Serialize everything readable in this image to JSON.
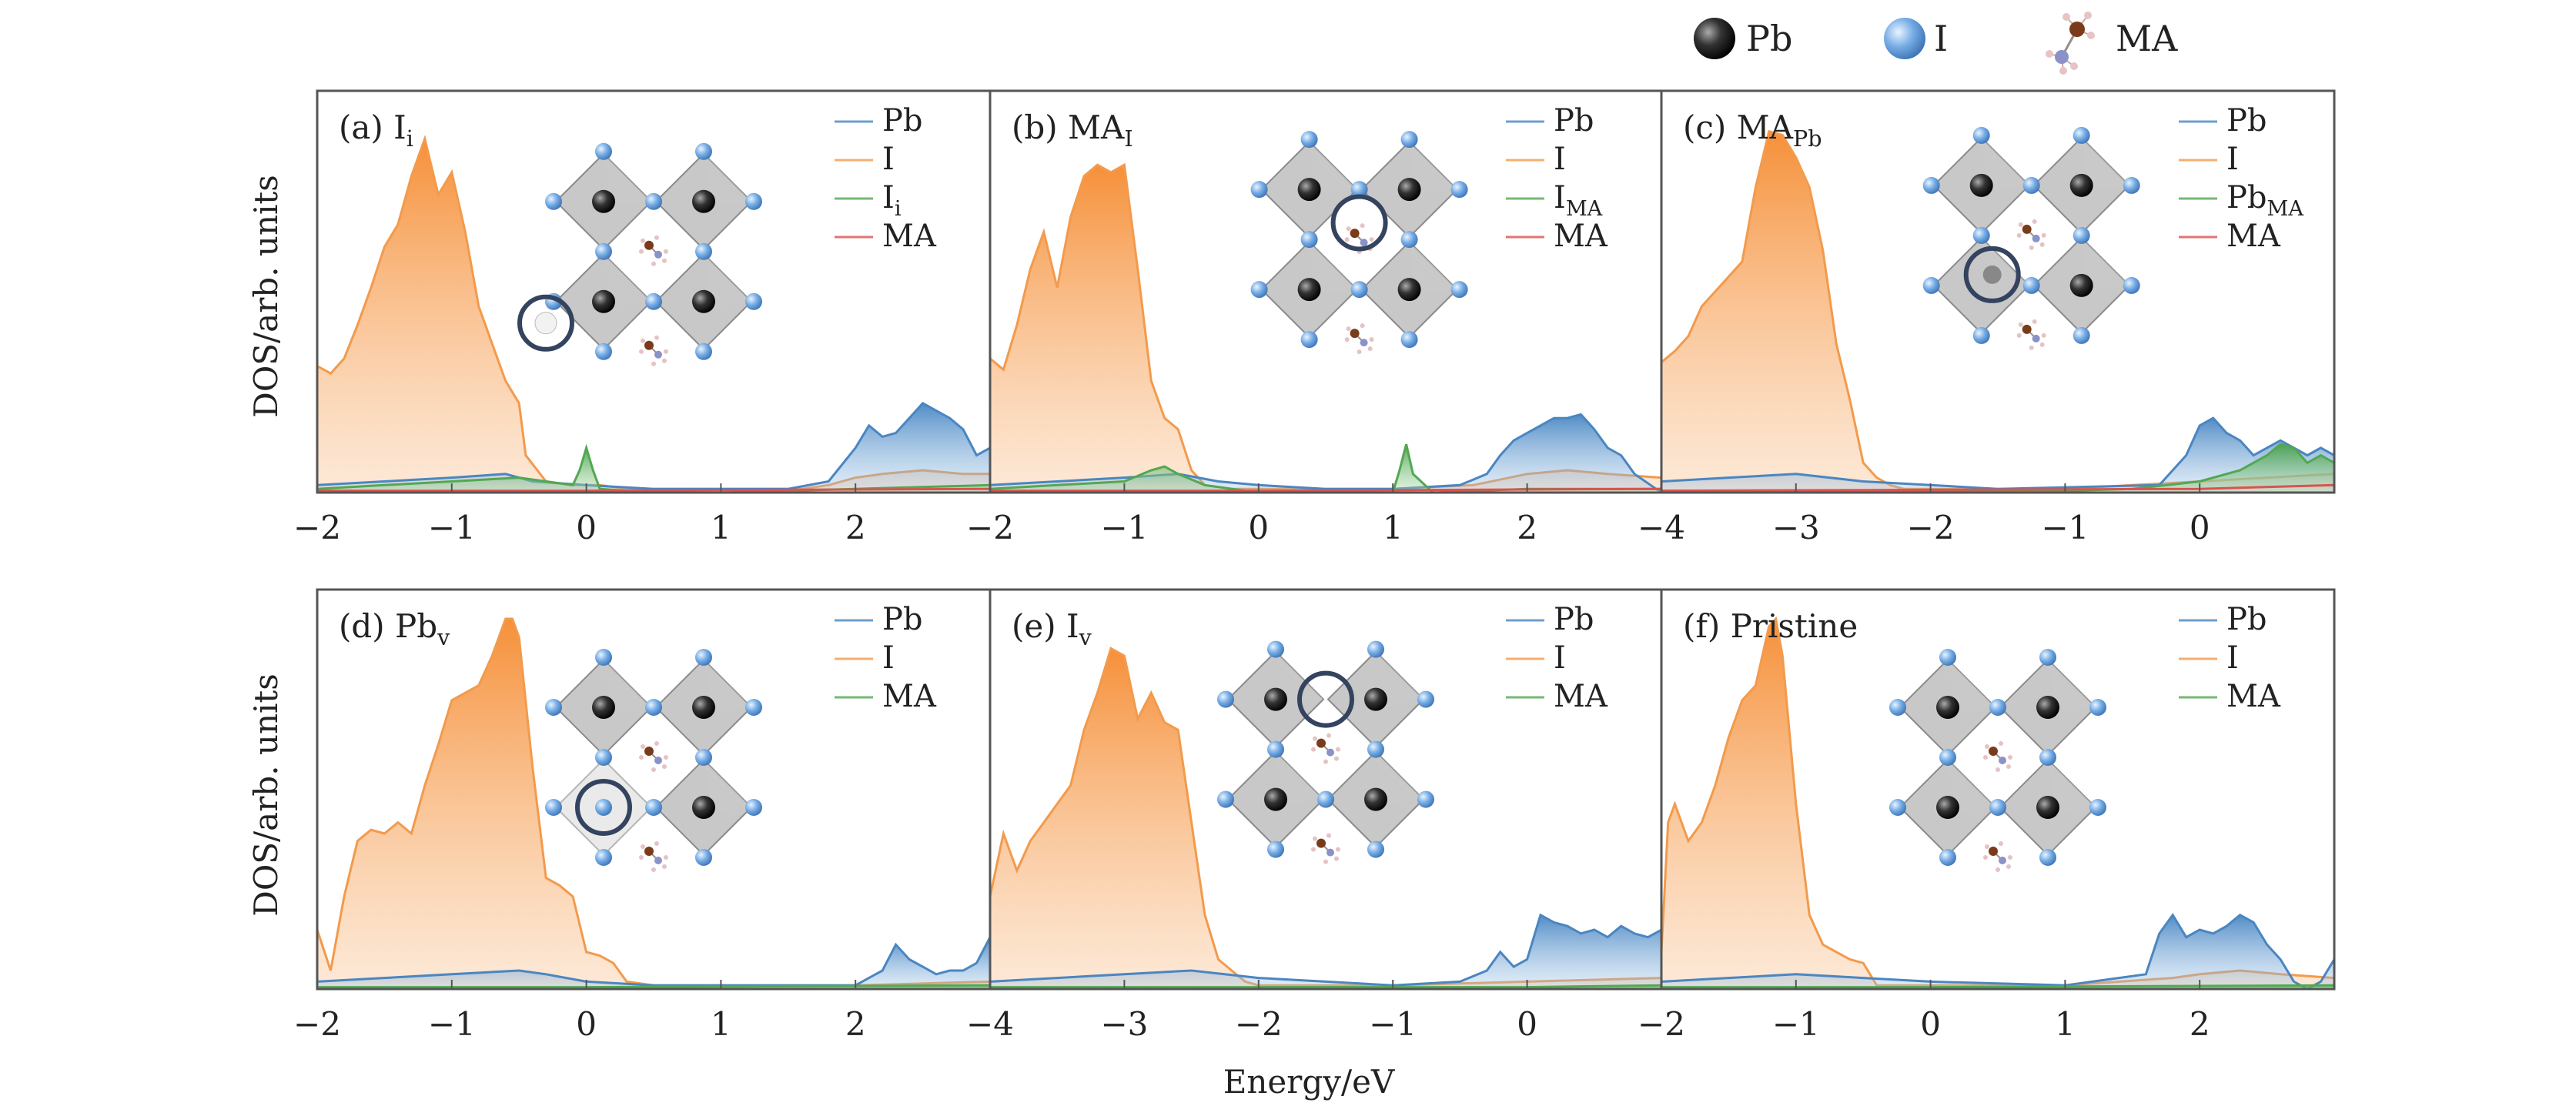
{
  "figure": {
    "ylabel": "DOS/arb. units",
    "xlabel": "Energy/eV",
    "atom_legend": [
      {
        "label": "Pb",
        "icon": "pb-atom-icon",
        "color": "#222222"
      },
      {
        "label": "I",
        "icon": "i-atom-icon",
        "color": "#6fa6e0"
      },
      {
        "label": "MA",
        "icon": "ma-molecule-icon",
        "color": "#8a4a2a"
      }
    ],
    "colors": {
      "Pb": "#4a86c1",
      "I": "#f39a4c",
      "defect": "#52a852",
      "MA": "#d9534f"
    }
  },
  "chart_data": [
    {
      "type": "area",
      "panel": "(a)",
      "label": "I",
      "label_sub": "i",
      "xlim": [
        -2,
        3
      ],
      "xticks": [
        -2,
        -1,
        0,
        1,
        2
      ],
      "y_ticks_shown": false,
      "legend": [
        {
          "text": "Pb",
          "sub": ""
        },
        {
          "text": "I",
          "sub": ""
        },
        {
          "text": "I",
          "sub": "i"
        },
        {
          "text": "MA",
          "sub": ""
        }
      ],
      "series": [
        {
          "name": "I",
          "color": "#f39a4c",
          "x": [
            -2,
            -1.9,
            -1.8,
            -1.7,
            -1.6,
            -1.5,
            -1.4,
            -1.3,
            -1.2,
            -1.1,
            -1.0,
            -0.9,
            -0.8,
            -0.7,
            -0.6,
            -0.5,
            -0.45,
            -0.3,
            -0.1,
            0.0,
            0.1,
            0.3,
            1.0,
            1.6,
            1.8,
            2.0,
            2.2,
            2.5,
            2.8,
            3.0
          ],
          "y": [
            0.34,
            0.32,
            0.36,
            0.45,
            0.55,
            0.66,
            0.72,
            0.85,
            0.95,
            0.8,
            0.86,
            0.7,
            0.5,
            0.4,
            0.3,
            0.24,
            0.1,
            0.03,
            0.02,
            0.02,
            0.02,
            0.01,
            0.01,
            0.01,
            0.02,
            0.04,
            0.05,
            0.06,
            0.05,
            0.05
          ]
        },
        {
          "name": "Pb",
          "color": "#4a86c1",
          "x": [
            -2,
            -1.5,
            -1.0,
            -0.6,
            -0.4,
            0.0,
            0.5,
            1.0,
            1.5,
            1.8,
            2.0,
            2.1,
            2.2,
            2.3,
            2.4,
            2.5,
            2.6,
            2.7,
            2.8,
            2.9,
            3.0
          ],
          "y": [
            0.02,
            0.03,
            0.04,
            0.05,
            0.03,
            0.02,
            0.01,
            0.01,
            0.01,
            0.03,
            0.12,
            0.18,
            0.15,
            0.16,
            0.2,
            0.24,
            0.22,
            0.2,
            0.17,
            0.1,
            0.12
          ]
        },
        {
          "name": "I_i",
          "color": "#52a852",
          "x": [
            -2,
            -1.5,
            -1.0,
            -0.5,
            -0.1,
            -0.05,
            0.0,
            0.05,
            0.1,
            0.5,
            1.0,
            2.0,
            3.0
          ],
          "y": [
            0.01,
            0.02,
            0.03,
            0.04,
            0.02,
            0.06,
            0.12,
            0.06,
            0.01,
            0.0,
            0.0,
            0.01,
            0.02
          ]
        },
        {
          "name": "MA",
          "color": "#d9534f",
          "x": [
            -2,
            0,
            3
          ],
          "y": [
            0.005,
            0.005,
            0.01
          ]
        }
      ]
    },
    {
      "type": "area",
      "panel": "(b)",
      "label": "MA",
      "label_sub": "I",
      "xlim": [
        -2,
        3
      ],
      "xticks": [
        -2,
        -1,
        0,
        1,
        2
      ],
      "y_ticks_shown": false,
      "legend": [
        {
          "text": "Pb",
          "sub": ""
        },
        {
          "text": "I",
          "sub": ""
        },
        {
          "text": "I",
          "sub": "MA"
        },
        {
          "text": "MA",
          "sub": ""
        }
      ],
      "series": [
        {
          "name": "I",
          "color": "#f39a4c",
          "x": [
            -2,
            -1.9,
            -1.8,
            -1.7,
            -1.6,
            -1.5,
            -1.4,
            -1.3,
            -1.2,
            -1.1,
            -1.0,
            -0.9,
            -0.8,
            -0.7,
            -0.6,
            -0.5,
            -0.4,
            -0.2,
            0.0,
            1.0,
            1.6,
            2.0,
            2.3,
            2.6,
            3.0
          ],
          "y": [
            0.36,
            0.33,
            0.45,
            0.6,
            0.7,
            0.55,
            0.74,
            0.85,
            0.88,
            0.86,
            0.88,
            0.6,
            0.3,
            0.2,
            0.17,
            0.06,
            0.02,
            0.01,
            0.01,
            0.01,
            0.02,
            0.05,
            0.06,
            0.05,
            0.04
          ]
        },
        {
          "name": "Pb",
          "color": "#4a86c1",
          "x": [
            -2,
            -1.5,
            -1.0,
            -0.6,
            -0.3,
            0.0,
            0.5,
            1.0,
            1.5,
            1.7,
            1.8,
            1.9,
            2.0,
            2.1,
            2.2,
            2.3,
            2.4,
            2.5,
            2.6,
            2.7,
            2.8,
            3.0
          ],
          "y": [
            0.02,
            0.03,
            0.04,
            0.05,
            0.03,
            0.02,
            0.01,
            0.01,
            0.02,
            0.05,
            0.1,
            0.14,
            0.16,
            0.18,
            0.2,
            0.2,
            0.21,
            0.17,
            0.12,
            0.1,
            0.05,
            0.0
          ]
        },
        {
          "name": "I_MA",
          "color": "#52a852",
          "x": [
            -2,
            -1.5,
            -1.0,
            -0.8,
            -0.7,
            -0.6,
            -0.4,
            0.0,
            1.0,
            1.05,
            1.1,
            1.15,
            1.3,
            2.0,
            3.0
          ],
          "y": [
            0.01,
            0.02,
            0.03,
            0.06,
            0.07,
            0.05,
            0.02,
            0.0,
            0.0,
            0.06,
            0.13,
            0.05,
            0.0,
            0.01,
            0.01
          ]
        },
        {
          "name": "MA",
          "color": "#d9534f",
          "x": [
            -2,
            0,
            3
          ],
          "y": [
            0.005,
            0.005,
            0.01
          ]
        }
      ]
    },
    {
      "type": "area",
      "panel": "(c)",
      "label": "MA",
      "label_sub": "Pb",
      "xlim": [
        -4,
        1
      ],
      "xticks": [
        -4,
        -3,
        -2,
        -1,
        0
      ],
      "y_ticks_shown": false,
      "legend": [
        {
          "text": "Pb",
          "sub": ""
        },
        {
          "text": "I",
          "sub": ""
        },
        {
          "text": "Pb",
          "sub": "MA"
        },
        {
          "text": "MA",
          "sub": ""
        }
      ],
      "series": [
        {
          "name": "I",
          "color": "#f39a4c",
          "x": [
            -4,
            -3.9,
            -3.8,
            -3.7,
            -3.6,
            -3.5,
            -3.4,
            -3.3,
            -3.2,
            -3.1,
            -3.0,
            -2.9,
            -2.8,
            -2.7,
            -2.6,
            -2.5,
            -2.4,
            -2.3,
            -2.2,
            -2.0,
            -1.5,
            -1.0,
            -0.5,
            0.0,
            0.5,
            1.0
          ],
          "y": [
            0.35,
            0.38,
            0.42,
            0.5,
            0.54,
            0.58,
            0.62,
            0.82,
            0.97,
            0.96,
            0.9,
            0.82,
            0.65,
            0.4,
            0.25,
            0.08,
            0.04,
            0.02,
            0.01,
            0.01,
            0.01,
            0.01,
            0.02,
            0.03,
            0.04,
            0.05
          ]
        },
        {
          "name": "Pb",
          "color": "#4a86c1",
          "x": [
            -4,
            -3.5,
            -3.0,
            -2.5,
            -2.0,
            -1.5,
            -0.3,
            -0.1,
            0.0,
            0.1,
            0.2,
            0.3,
            0.4,
            0.5,
            0.6,
            0.7,
            0.8,
            0.9,
            1.0
          ],
          "y": [
            0.03,
            0.04,
            0.05,
            0.03,
            0.02,
            0.01,
            0.02,
            0.1,
            0.18,
            0.2,
            0.16,
            0.14,
            0.1,
            0.12,
            0.14,
            0.12,
            0.1,
            0.12,
            0.1
          ]
        },
        {
          "name": "Pb_MA",
          "color": "#52a852",
          "x": [
            -4,
            -2.0,
            -1.0,
            -0.5,
            0.0,
            0.3,
            0.5,
            0.6,
            0.7,
            0.8,
            0.9,
            1.0
          ],
          "y": [
            0.005,
            0.005,
            0.005,
            0.01,
            0.03,
            0.06,
            0.1,
            0.13,
            0.12,
            0.08,
            0.1,
            0.08
          ]
        },
        {
          "name": "MA",
          "color": "#d9534f",
          "x": [
            -4,
            0,
            1
          ],
          "y": [
            0.005,
            0.01,
            0.02
          ]
        }
      ]
    },
    {
      "type": "area",
      "panel": "(d)",
      "label": "Pb",
      "label_sub": "v",
      "xlim": [
        -2,
        3
      ],
      "xticks": [
        -2,
        -1,
        0,
        1,
        2
      ],
      "y_ticks_shown": false,
      "legend": [
        {
          "text": "Pb",
          "sub": ""
        },
        {
          "text": "I",
          "sub": ""
        },
        {
          "text": "MA",
          "sub": ""
        }
      ],
      "series": [
        {
          "name": "I",
          "color": "#f39a4c",
          "x": [
            -2,
            -1.9,
            -1.8,
            -1.7,
            -1.6,
            -1.5,
            -1.4,
            -1.3,
            -1.2,
            -1.1,
            -1.0,
            -0.9,
            -0.8,
            -0.7,
            -0.6,
            -0.55,
            -0.5,
            -0.4,
            -0.3,
            -0.2,
            -0.1,
            0.0,
            0.1,
            0.2,
            0.3,
            0.5,
            1.0,
            2.0,
            3.0
          ],
          "y": [
            0.16,
            0.05,
            0.25,
            0.4,
            0.43,
            0.42,
            0.45,
            0.42,
            0.55,
            0.66,
            0.78,
            0.8,
            0.82,
            0.9,
            1.0,
            1.0,
            0.95,
            0.6,
            0.3,
            0.28,
            0.25,
            0.1,
            0.09,
            0.07,
            0.02,
            0.01,
            0.01,
            0.01,
            0.02
          ]
        },
        {
          "name": "Pb",
          "color": "#4a86c1",
          "x": [
            -2,
            -1.5,
            -1.0,
            -0.5,
            -0.3,
            0.0,
            0.5,
            1.0,
            2.0,
            2.2,
            2.3,
            2.4,
            2.5,
            2.6,
            2.7,
            2.8,
            2.9,
            3.0
          ],
          "y": [
            0.02,
            0.03,
            0.04,
            0.05,
            0.04,
            0.02,
            0.01,
            0.01,
            0.01,
            0.05,
            0.12,
            0.08,
            0.06,
            0.04,
            0.05,
            0.05,
            0.07,
            0.14
          ]
        },
        {
          "name": "MA",
          "color": "#52a852",
          "x": [
            -2,
            0,
            3
          ],
          "y": [
            0.005,
            0.005,
            0.01
          ]
        }
      ]
    },
    {
      "type": "area",
      "panel": "(e)",
      "label": "I",
      "label_sub": "v",
      "xlim": [
        -4,
        1
      ],
      "xticks": [
        -4,
        -3,
        -2,
        -1,
        0
      ],
      "y_ticks_shown": false,
      "legend": [
        {
          "text": "Pb",
          "sub": ""
        },
        {
          "text": "I",
          "sub": ""
        },
        {
          "text": "MA",
          "sub": ""
        }
      ],
      "series": [
        {
          "name": "I",
          "color": "#f39a4c",
          "x": [
            -4,
            -3.9,
            -3.8,
            -3.7,
            -3.6,
            -3.5,
            -3.4,
            -3.3,
            -3.2,
            -3.1,
            -3.0,
            -2.9,
            -2.8,
            -2.7,
            -2.6,
            -2.5,
            -2.4,
            -2.3,
            -2.2,
            -2.1,
            -2.0,
            -1.5,
            -1.0,
            0.0,
            1.0
          ],
          "y": [
            0.25,
            0.42,
            0.32,
            0.4,
            0.45,
            0.5,
            0.55,
            0.7,
            0.8,
            0.92,
            0.9,
            0.73,
            0.8,
            0.72,
            0.7,
            0.45,
            0.2,
            0.08,
            0.05,
            0.02,
            0.01,
            0.01,
            0.01,
            0.02,
            0.03
          ]
        },
        {
          "name": "Pb",
          "color": "#4a86c1",
          "x": [
            -4,
            -3.5,
            -3.0,
            -2.5,
            -2.0,
            -1.0,
            -0.5,
            -0.3,
            -0.2,
            -0.1,
            0.0,
            0.1,
            0.2,
            0.3,
            0.4,
            0.5,
            0.6,
            0.7,
            0.8,
            0.9,
            1.0
          ],
          "y": [
            0.02,
            0.03,
            0.04,
            0.05,
            0.03,
            0.01,
            0.02,
            0.05,
            0.1,
            0.06,
            0.08,
            0.2,
            0.18,
            0.17,
            0.15,
            0.16,
            0.14,
            0.17,
            0.15,
            0.14,
            0.16
          ]
        },
        {
          "name": "MA",
          "color": "#52a852",
          "x": [
            -4,
            0,
            1
          ],
          "y": [
            0.005,
            0.005,
            0.01
          ]
        }
      ]
    },
    {
      "type": "area",
      "panel": "(f)",
      "label": "Pristine",
      "label_sub": "",
      "xlim": [
        -2,
        3
      ],
      "xticks": [
        -2,
        -1,
        0,
        1,
        2
      ],
      "y_ticks_shown": false,
      "legend": [
        {
          "text": "Pb",
          "sub": ""
        },
        {
          "text": "I",
          "sub": ""
        },
        {
          "text": "MA",
          "sub": ""
        }
      ],
      "series": [
        {
          "name": "I",
          "color": "#f39a4c",
          "x": [
            -2,
            -1.95,
            -1.9,
            -1.85,
            -1.8,
            -1.7,
            -1.6,
            -1.5,
            -1.4,
            -1.3,
            -1.2,
            -1.15,
            -1.1,
            -1.0,
            -0.9,
            -0.8,
            -0.7,
            -0.6,
            -0.5,
            -0.4,
            0.0,
            1.0,
            1.8,
            2.0,
            2.3,
            2.6,
            3.0
          ],
          "y": [
            0.1,
            0.45,
            0.5,
            0.45,
            0.4,
            0.45,
            0.55,
            0.68,
            0.78,
            0.82,
            0.98,
            1.0,
            0.9,
            0.5,
            0.2,
            0.12,
            0.1,
            0.08,
            0.07,
            0.01,
            0.01,
            0.01,
            0.03,
            0.04,
            0.05,
            0.04,
            0.03
          ]
        },
        {
          "name": "Pb",
          "color": "#4a86c1",
          "x": [
            -2,
            -1.5,
            -1.0,
            -0.5,
            0.0,
            1.0,
            1.6,
            1.7,
            1.8,
            1.9,
            2.0,
            2.1,
            2.2,
            2.3,
            2.4,
            2.5,
            2.6,
            2.7,
            2.8,
            2.9,
            3.0
          ],
          "y": [
            0.02,
            0.03,
            0.04,
            0.03,
            0.02,
            0.01,
            0.04,
            0.15,
            0.2,
            0.14,
            0.16,
            0.15,
            0.17,
            0.2,
            0.18,
            0.12,
            0.08,
            0.02,
            0.0,
            0.02,
            0.08
          ]
        },
        {
          "name": "MA",
          "color": "#52a852",
          "x": [
            -2,
            0,
            3
          ],
          "y": [
            0.005,
            0.005,
            0.01
          ]
        }
      ]
    }
  ]
}
